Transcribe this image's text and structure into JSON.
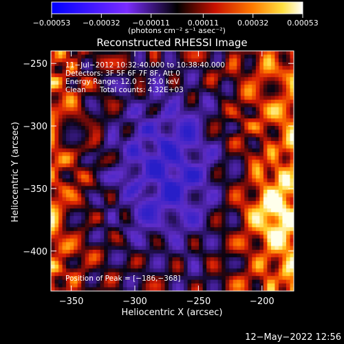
{
  "chart_data": {
    "type": "heatmap",
    "title": "Reconstructed RHESSI Image",
    "xlabel": "Heliocentric X (arcsec)",
    "ylabel": "Heliocentric Y (arcsec)",
    "xlim": [
      -366,
      -175
    ],
    "ylim": [
      -432,
      -240
    ],
    "x_ticks": [
      -350,
      -300,
      -250,
      -200
    ],
    "y_ticks": [
      -250,
      -300,
      -350,
      -400
    ],
    "x_tick_labels": [
      "−350",
      "−300",
      "−250",
      "−200"
    ],
    "y_tick_labels": [
      "−250",
      "−300",
      "−350",
      "−400"
    ],
    "colorbar": {
      "range": [
        -0.00053,
        0.00053
      ],
      "ticks": [
        -0.00053,
        -0.00032,
        -0.00011,
        0.00011,
        0.00032,
        0.00053
      ],
      "tick_labels": [
        "−0.00053",
        "−0.00032",
        "−0.00011",
        "0.00011",
        "0.00032",
        "0.00053"
      ],
      "units": "(photons cm⁻² s⁻¹ asec⁻²)"
    },
    "annotations": [
      "11−Jul−2012 10:32:40.000 to 10:38:40.000",
      "Detectors: 3F 5F 6F 7F 8F, Att 0",
      "Energy Range: 12.0 − 25.0 keV",
      "Clean      Total counts: 4.32E+03"
    ],
    "peak_label": "Position of Peak = [−186,−368]",
    "peak": {
      "x": -186,
      "y": -368
    },
    "grid": false,
    "colormap": "blue-purple-black-red-orange-yellow-white"
  },
  "footer": {
    "timestamp": "12−May−2022 12:56"
  }
}
